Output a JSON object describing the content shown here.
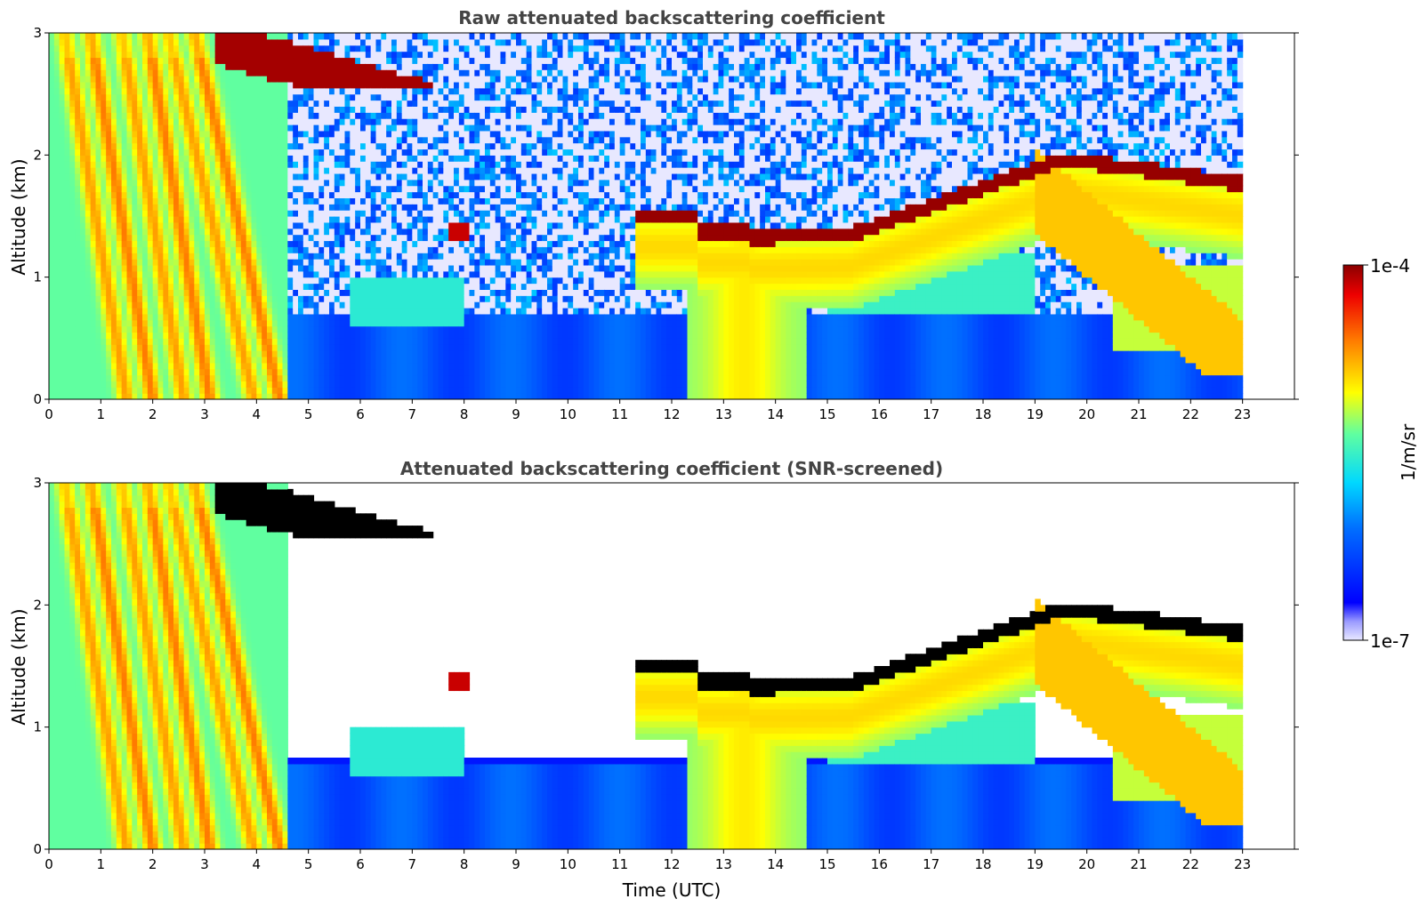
{
  "chart_data": [
    {
      "type": "heatmap",
      "title": "Raw attenuated backscattering coefficient",
      "xlabel": "",
      "ylabel": "Altitude (km)",
      "xlim": [
        0,
        24
      ],
      "ylim": [
        0,
        3
      ],
      "xticks": [
        "0",
        "1",
        "2",
        "3",
        "4",
        "5",
        "6",
        "7",
        "8",
        "9",
        "10",
        "11",
        "12",
        "13",
        "14",
        "15",
        "16",
        "17",
        "18",
        "19",
        "20",
        "21",
        "22",
        "23"
      ],
      "yticks": [
        "0",
        "1",
        "2",
        "3"
      ],
      "data_extent_hours": [
        0,
        23
      ],
      "features": [
        {
          "name": "precipitation streaks",
          "time_h": [
            0,
            4.5
          ],
          "alt_km": [
            0,
            3
          ]
        },
        {
          "name": "high cloud layer",
          "time_h": [
            3.2,
            7.4
          ],
          "alt_km": [
            2.55,
            3.0
          ]
        },
        {
          "name": "stratocumulus top",
          "time_h": [
            11.3,
            23
          ],
          "alt_km": [
            1.25,
            1.95
          ]
        },
        {
          "name": "boundary layer aerosol",
          "time_h": [
            0,
            23
          ],
          "alt_km": [
            0,
            0.7
          ]
        }
      ]
    },
    {
      "type": "heatmap",
      "title": "Attenuated backscattering coefficient (SNR-screened)",
      "xlabel": "Time (UTC)",
      "ylabel": "Altitude (km)",
      "xlim": [
        0,
        24
      ],
      "ylim": [
        0,
        3
      ],
      "xticks": [
        "0",
        "1",
        "2",
        "3",
        "4",
        "5",
        "6",
        "7",
        "8",
        "9",
        "10",
        "11",
        "12",
        "13",
        "14",
        "15",
        "16",
        "17",
        "18",
        "19",
        "20",
        "21",
        "22",
        "23"
      ],
      "yticks": [
        "0",
        "1",
        "2",
        "3"
      ],
      "data_extent_hours": [
        0,
        23
      ],
      "screened_color": "#000000"
    }
  ],
  "colorbar": {
    "label": "1/m/sr",
    "max_label": "1e-4",
    "min_label": "1e-7",
    "scale": "log",
    "range": [
      1e-07,
      0.0001
    ],
    "colormap": "jet"
  },
  "colors": {
    "background": "#ffffff",
    "title": "#444444",
    "screened": "#000000"
  }
}
